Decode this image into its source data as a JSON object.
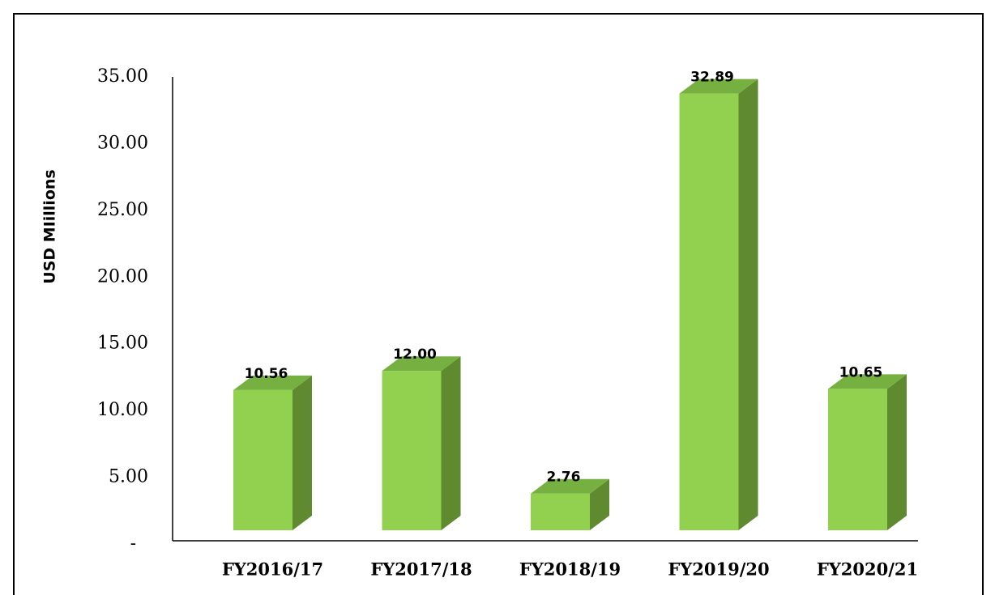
{
  "chart_data": {
    "type": "bar3d",
    "y_label": "USD MIillions",
    "categories": [
      "FY2016/17",
      "FY2017/18",
      "FY2018/19",
      "FY2019/20",
      "FY2020/21"
    ],
    "values": [
      10.56,
      12.0,
      2.76,
      32.89,
      10.65
    ],
    "value_labels": [
      "10.56",
      "12.00",
      "2.76",
      "32.89",
      "10.65"
    ],
    "color": "#92d050",
    "ylim": [
      0,
      35
    ],
    "yticks": [
      {
        "value": 0,
        "label": "-"
      },
      {
        "value": 5,
        "label": "5.00"
      },
      {
        "value": 10,
        "label": "10.00"
      },
      {
        "value": 15,
        "label": "15.00"
      },
      {
        "value": 20,
        "label": "20.00"
      },
      {
        "value": 25,
        "label": "25.00"
      },
      {
        "value": 30,
        "label": "30.00"
      },
      {
        "value": 35,
        "label": "35.00"
      }
    ]
  }
}
